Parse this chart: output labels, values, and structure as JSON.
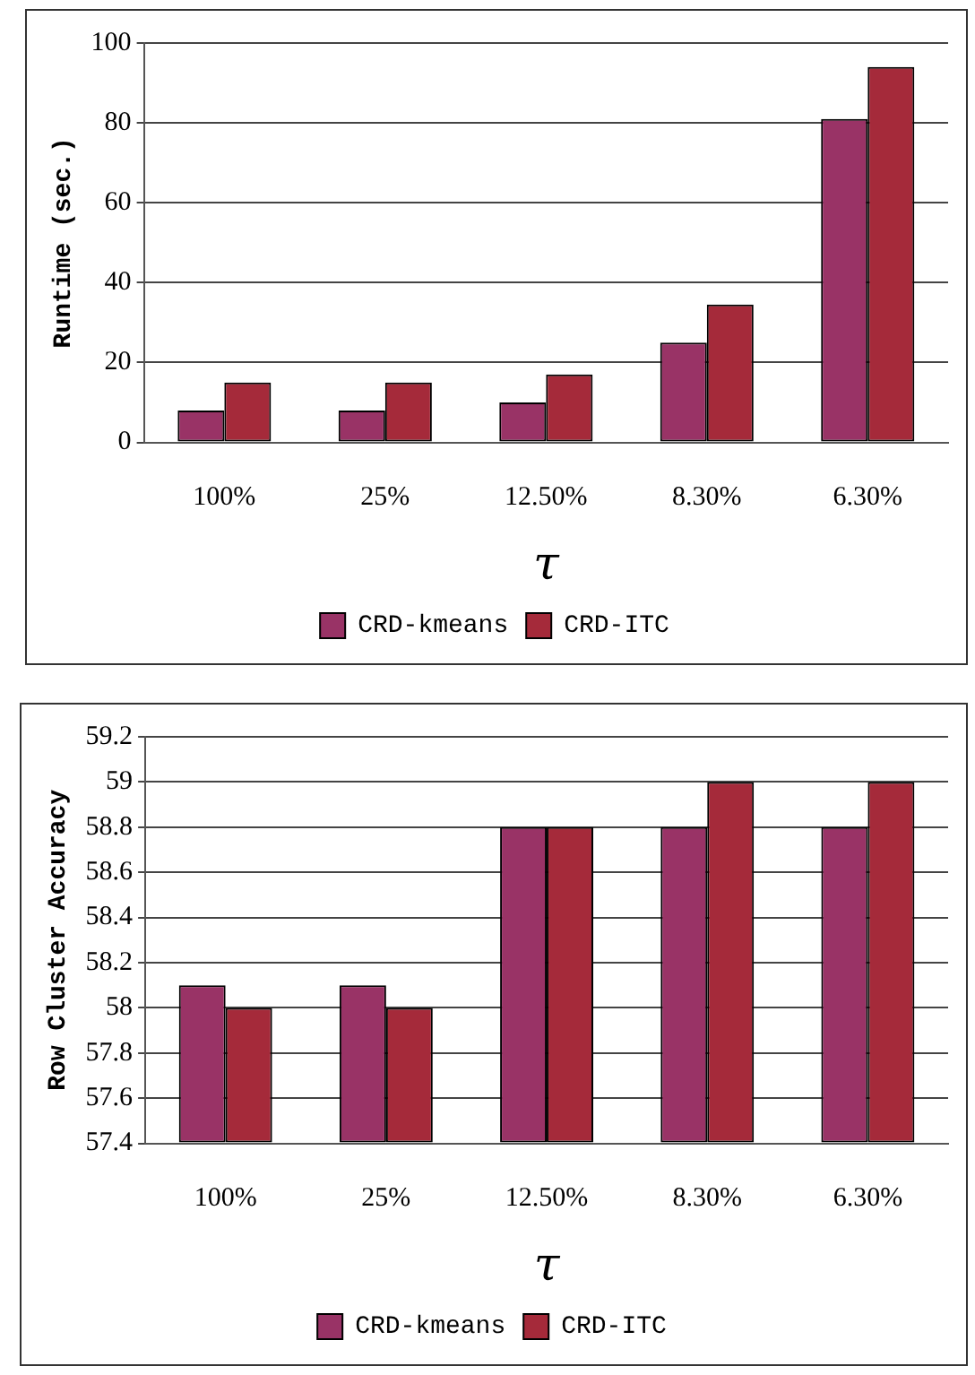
{
  "chart_data": [
    {
      "type": "bar",
      "categories": [
        "100%",
        "25%",
        "12.50%",
        "8.30%",
        "6.30%"
      ],
      "xlabel": "τ",
      "ylabel": "Runtime (sec.)",
      "series": [
        {
          "name": "CRD-kmeans",
          "color": "#993366",
          "values": [
            8,
            8,
            10,
            25,
            81
          ]
        },
        {
          "name": "CRD-ITC",
          "color": "#a52a3a",
          "values": [
            15,
            15,
            17,
            34.5,
            94
          ]
        }
      ],
      "ylim": [
        0,
        100
      ],
      "yticks": [
        0,
        20,
        40,
        60,
        80,
        100
      ],
      "grid": "y",
      "legend": "bottom"
    },
    {
      "type": "bar",
      "categories": [
        "100%",
        "25%",
        "12.50%",
        "8.30%",
        "6.30%"
      ],
      "xlabel": "τ",
      "ylabel": "Row Cluster Accuracy",
      "series": [
        {
          "name": "CRD-kmeans",
          "color": "#993366",
          "values": [
            58.1,
            58.1,
            58.8,
            58.8,
            58.8
          ]
        },
        {
          "name": "CRD-ITC",
          "color": "#a52a3a",
          "values": [
            58,
            58,
            58.8,
            59,
            59
          ]
        }
      ],
      "ylim": [
        57.4,
        59.2
      ],
      "yticks": [
        57.4,
        57.6,
        57.8,
        58,
        58.2,
        58.4,
        58.6,
        58.8,
        59,
        59.2
      ],
      "grid": "y",
      "legend": "bottom"
    }
  ]
}
